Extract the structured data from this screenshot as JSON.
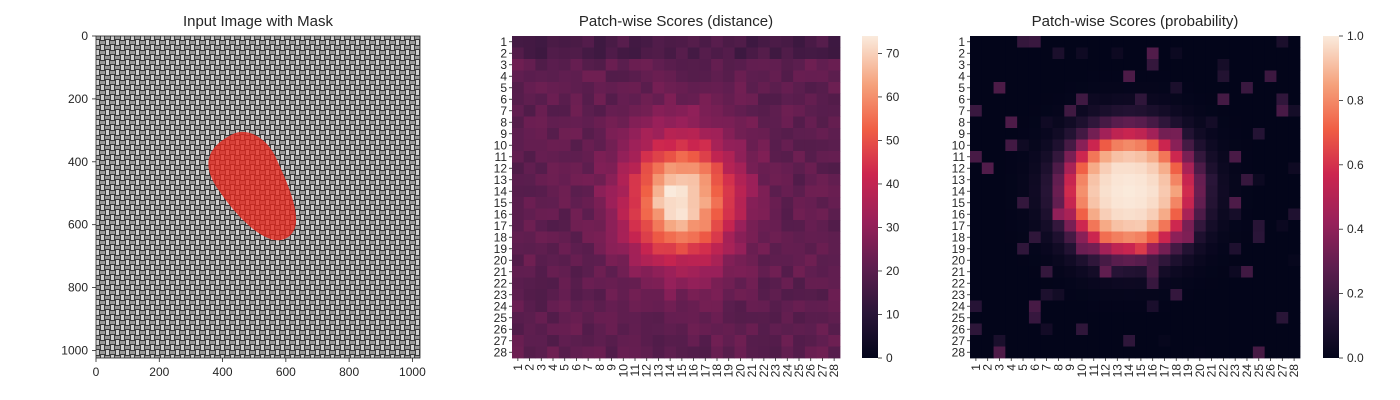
{
  "chart_data": [
    {
      "type": "image",
      "title": "Input Image with Mask",
      "xlim": [
        0,
        1024
      ],
      "ylim": [
        1024,
        0
      ],
      "x_ticks": [
        "0",
        "200",
        "400",
        "600",
        "800",
        "1000"
      ],
      "y_ticks": [
        "0",
        "200",
        "400",
        "600",
        "800",
        "1000"
      ],
      "mask_color": "#e8281e",
      "texture_colors": [
        "#3a3a3a",
        "#8c8c8c",
        "#d8d8d8"
      ]
    },
    {
      "type": "heatmap",
      "title": "Patch-wise Scores (distance)",
      "rows": 28,
      "cols": 28,
      "row_labels": [
        "1",
        "2",
        "3",
        "4",
        "5",
        "6",
        "7",
        "8",
        "9",
        "10",
        "11",
        "12",
        "13",
        "14",
        "15",
        "16",
        "17",
        "18",
        "19",
        "20",
        "21",
        "22",
        "23",
        "24",
        "25",
        "26",
        "27",
        "28"
      ],
      "col_labels": [
        "1",
        "2",
        "3",
        "4",
        "5",
        "6",
        "7",
        "8",
        "9",
        "10",
        "11",
        "12",
        "13",
        "14",
        "15",
        "16",
        "17",
        "18",
        "19",
        "20",
        "21",
        "22",
        "23",
        "24",
        "25",
        "26",
        "27",
        "28"
      ],
      "colorbar_ticks": [
        "0",
        "10",
        "20",
        "30",
        "40",
        "50",
        "60",
        "70"
      ],
      "vmin": 0,
      "vmax": 74,
      "background_value": 21,
      "blob": {
        "center_row": 14.7,
        "center_col": 14.9,
        "spread_row": 4.2,
        "spread_col": 3.6,
        "peak": 74
      }
    },
    {
      "type": "heatmap",
      "title": "Patch-wise Scores (probability)",
      "rows": 28,
      "cols": 28,
      "row_labels": [
        "1",
        "2",
        "3",
        "4",
        "5",
        "6",
        "7",
        "8",
        "9",
        "10",
        "11",
        "12",
        "13",
        "14",
        "15",
        "16",
        "17",
        "18",
        "19",
        "20",
        "21",
        "22",
        "23",
        "24",
        "25",
        "26",
        "27",
        "28"
      ],
      "col_labels": [
        "1",
        "2",
        "3",
        "4",
        "5",
        "6",
        "7",
        "8",
        "9",
        "10",
        "11",
        "12",
        "13",
        "14",
        "15",
        "16",
        "17",
        "18",
        "19",
        "20",
        "21",
        "22",
        "23",
        "24",
        "25",
        "26",
        "27",
        "28"
      ],
      "colorbar_ticks": [
        "0.0",
        "0.2",
        "0.4",
        "0.6",
        "0.8",
        "1.0"
      ],
      "vmin": 0.0,
      "vmax": 1.0,
      "background_value": 0.0,
      "blob": {
        "center_row": 14.0,
        "center_col": 14.0,
        "spread_row": 5.2,
        "spread_col": 5.3,
        "peak": 1.0
      }
    }
  ]
}
